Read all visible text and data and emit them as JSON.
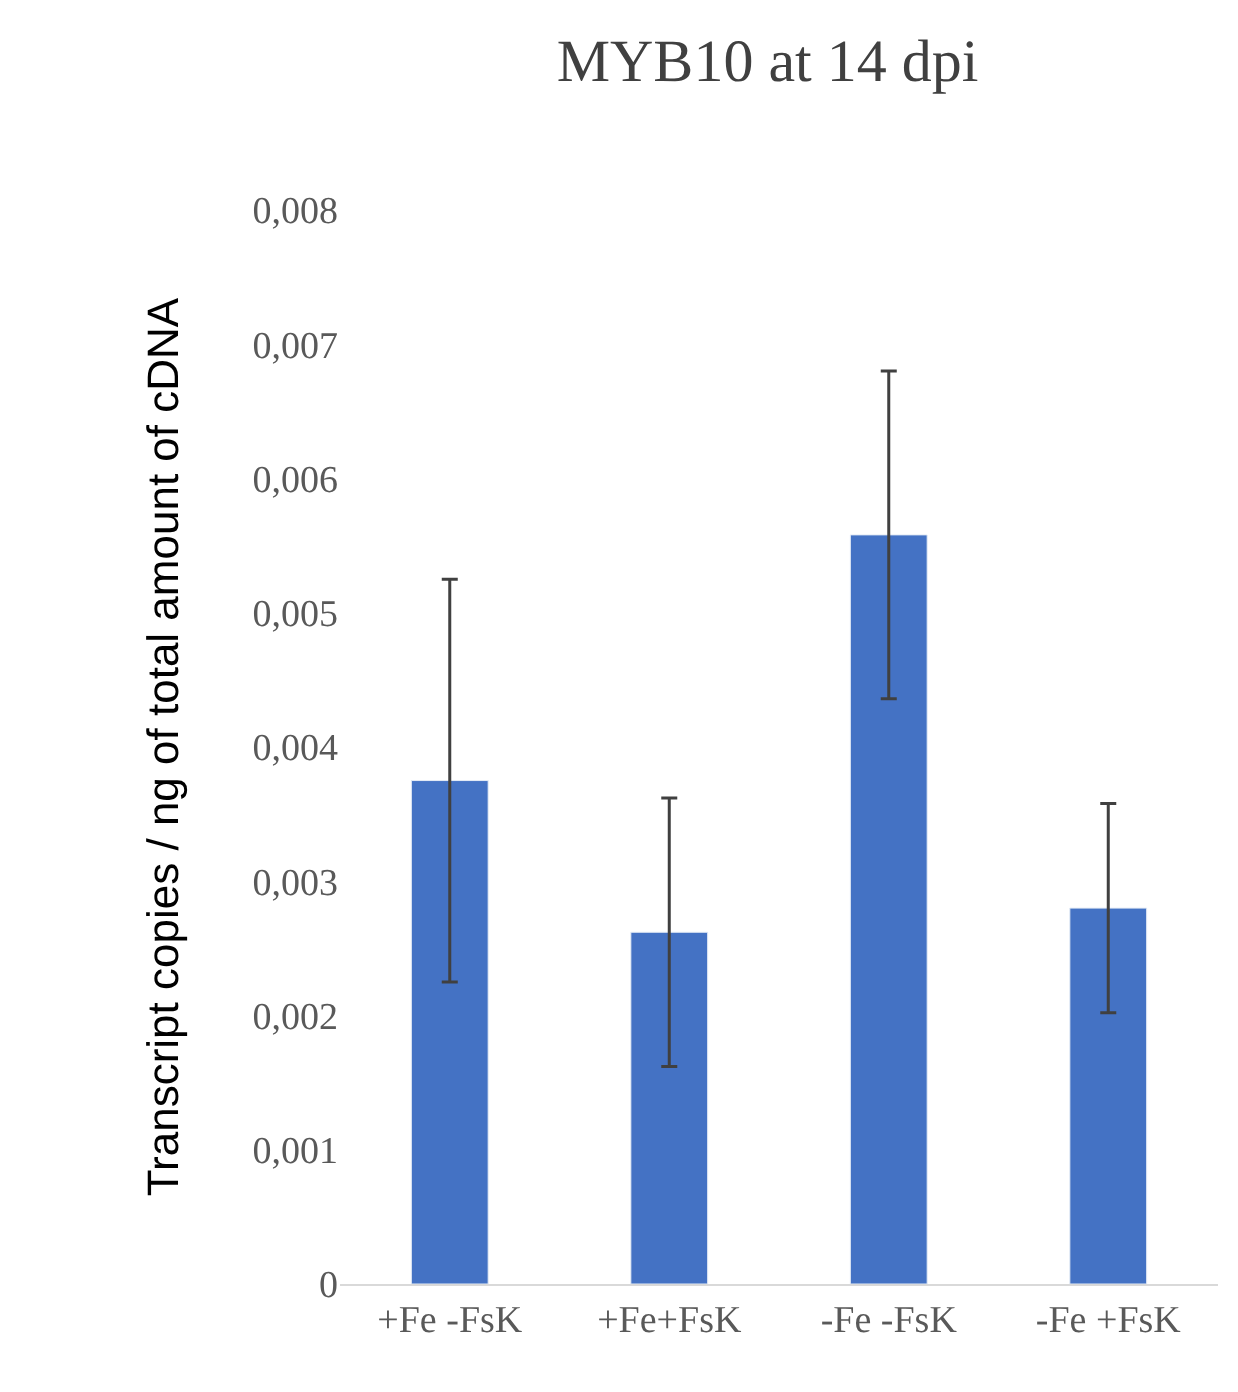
{
  "chart_data": {
    "type": "bar",
    "title": "MYB10 at 14 dpi",
    "ylabel": "Transcript copies / ng of total amount of cDNA",
    "categories": [
      "+Fe -FsK",
      "+Fe+FsK",
      "-Fe -FsK",
      "-Fe +FsK"
    ],
    "values": [
      0.00375,
      0.00262,
      0.00558,
      0.0028
    ],
    "errors": [
      0.0015,
      0.001,
      0.00122,
      0.00078
    ],
    "color": "#4472c4",
    "ylim": [
      0,
      0.008
    ],
    "yticks": [
      0,
      {
        "value": 0.001,
        "label": "0,001"
      },
      {
        "value": 0.002,
        "label": "0,002"
      },
      {
        "value": 0.003,
        "label": "0,003"
      },
      {
        "value": 0.004,
        "label": "0,004"
      },
      {
        "value": 0.005,
        "label": "0,005"
      },
      {
        "value": 0.006,
        "label": "0,006"
      },
      {
        "value": 0.007,
        "label": "0,007"
      },
      {
        "value": 0.008,
        "label": "0,008"
      }
    ],
    "grid": false
  }
}
